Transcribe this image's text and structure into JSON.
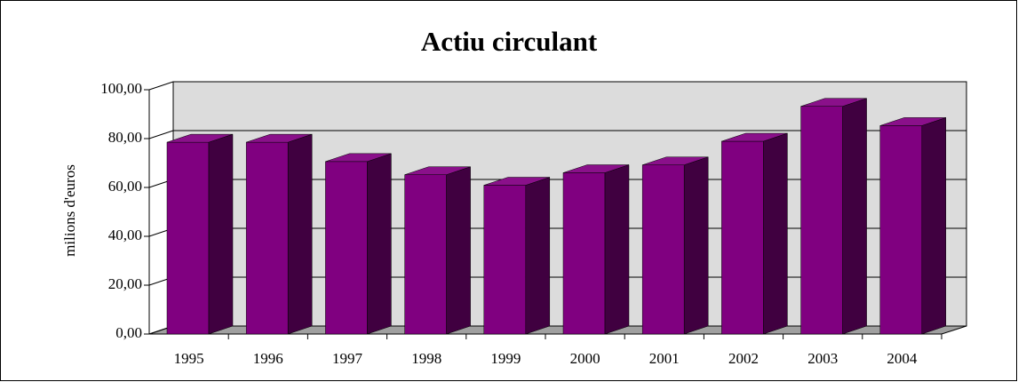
{
  "chart_data": {
    "type": "bar",
    "title": "Actiu circulant",
    "ylabel": "milions d'euros",
    "categories": [
      "1995",
      "1996",
      "1997",
      "1998",
      "1999",
      "2000",
      "2001",
      "2002",
      "2003",
      "2004"
    ],
    "values": [
      78.5,
      78.5,
      70.6,
      65.2,
      60.9,
      66.0,
      69.2,
      78.9,
      93.2,
      85.3
    ],
    "color": "#800080",
    "ylim": [
      0,
      100
    ],
    "yticks": [
      {
        "value": 0,
        "label": "0,00"
      },
      {
        "value": 20,
        "label": "20,00"
      },
      {
        "value": 40,
        "label": "40,00"
      },
      {
        "value": 60,
        "label": "60,00"
      },
      {
        "value": 80,
        "label": "80,00"
      },
      {
        "value": 100,
        "label": "100,00"
      }
    ],
    "grid": true
  }
}
